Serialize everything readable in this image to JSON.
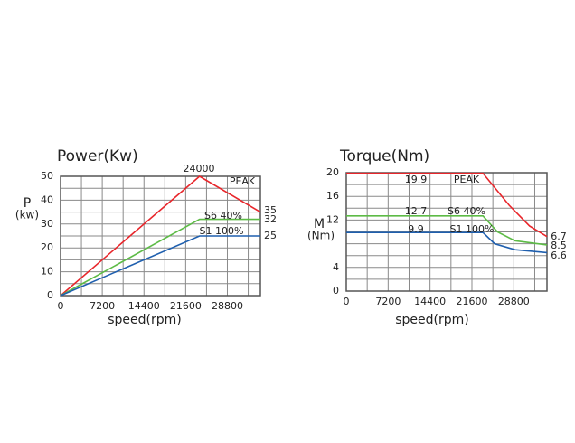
{
  "chart_data": [
    {
      "type": "line",
      "title": "Power(Kw)",
      "x_label": "speed(rpm)",
      "y_label": "P",
      "y_unit": "(kw)",
      "xlim": [
        0,
        34500
      ],
      "xticks": [
        0,
        7200,
        14400,
        21600,
        28800
      ],
      "x_minor_ticks": [
        3600,
        10800,
        18000,
        25200,
        32400
      ],
      "ylim": [
        0,
        50
      ],
      "yticks": [
        0,
        10,
        20,
        30,
        40,
        50
      ],
      "y_minor_ticks": [
        5,
        15,
        25,
        35,
        45
      ],
      "grid": true,
      "series": [
        {
          "name": "PEAK",
          "color": "#e8262b",
          "x": [
            0,
            24000,
            34500
          ],
          "values": [
            0,
            50,
            35
          ]
        },
        {
          "name": "S6 40%",
          "color": "#5dbb46",
          "x": [
            0,
            24000,
            34500
          ],
          "values": [
            0,
            32,
            32
          ]
        },
        {
          "name": "S1 100%",
          "color": "#1f5fae",
          "x": [
            0,
            24000,
            34500
          ],
          "values": [
            0,
            25,
            25
          ]
        }
      ],
      "annotations": [
        "24000",
        "35",
        "32",
        "25"
      ]
    },
    {
      "type": "line",
      "title": "Torque(Nm)",
      "x_label": "speed(rpm)",
      "y_label": "M",
      "y_unit": "(Nm)",
      "xlim": [
        0,
        34500
      ],
      "xticks": [
        0,
        7200,
        14400,
        21600,
        28800
      ],
      "x_minor_ticks": [
        3600,
        10800,
        18000,
        25200,
        32400
      ],
      "ylim": [
        0,
        20
      ],
      "yticks": [
        0,
        4,
        12,
        16,
        20
      ],
      "y_minor_ticks": [
        2,
        6,
        8,
        10,
        14,
        18
      ],
      "grid": true,
      "series": [
        {
          "name": "PEAK",
          "color": "#e8262b",
          "x": [
            0,
            23500,
            28000,
            31500,
            34500
          ],
          "values": [
            19.9,
            19.9,
            14.5,
            11,
            9.2
          ]
        },
        {
          "name": "S6 40%",
          "color": "#5dbb46",
          "x": [
            0,
            23500,
            26000,
            29000,
            34500
          ],
          "values": [
            12.7,
            12.7,
            10,
            8.5,
            7.8
          ]
        },
        {
          "name": "S1 100%",
          "color": "#1f5fae",
          "x": [
            0,
            23500,
            25500,
            29000,
            34500
          ],
          "values": [
            9.9,
            9.9,
            8,
            7,
            6.5
          ]
        }
      ],
      "annotations": [
        "19.9",
        "12.7",
        "9.9",
        "6.7",
        "8.5",
        "6.6"
      ]
    }
  ]
}
